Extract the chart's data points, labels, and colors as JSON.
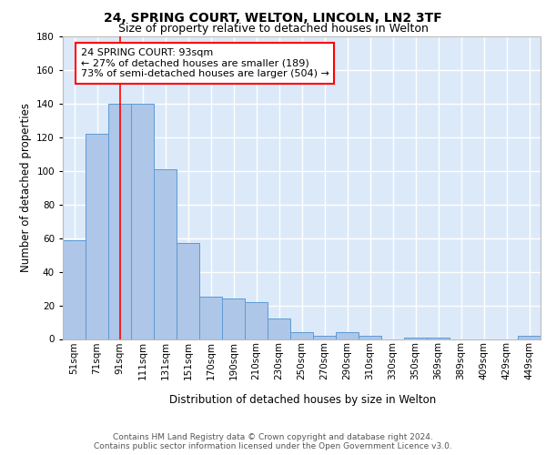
{
  "title1": "24, SPRING COURT, WELTON, LINCOLN, LN2 3TF",
  "title2": "Size of property relative to detached houses in Welton",
  "xlabel": "Distribution of detached houses by size in Welton",
  "ylabel": "Number of detached properties",
  "categories": [
    "51sqm",
    "71sqm",
    "91sqm",
    "111sqm",
    "131sqm",
    "151sqm",
    "170sqm",
    "190sqm",
    "210sqm",
    "230sqm",
    "250sqm",
    "270sqm",
    "290sqm",
    "310sqm",
    "330sqm",
    "350sqm",
    "369sqm",
    "389sqm",
    "409sqm",
    "429sqm",
    "449sqm"
  ],
  "values": [
    59,
    122,
    140,
    140,
    101,
    57,
    25,
    24,
    22,
    12,
    4,
    2,
    4,
    2,
    0,
    1,
    1,
    0,
    0,
    0,
    2
  ],
  "bar_color": "#aec6e8",
  "bar_edge_color": "#5b9bd5",
  "red_line_x": 2,
  "annotation_text": "24 SPRING COURT: 93sqm\n← 27% of detached houses are smaller (189)\n73% of semi-detached houses are larger (504) →",
  "annotation_box_color": "white",
  "annotation_box_edge_color": "red",
  "ylim": [
    0,
    180
  ],
  "yticks": [
    0,
    20,
    40,
    60,
    80,
    100,
    120,
    140,
    160,
    180
  ],
  "footer": "Contains HM Land Registry data © Crown copyright and database right 2024.\nContains public sector information licensed under the Open Government Licence v3.0.",
  "bg_color": "#dce9f8",
  "grid_color": "white",
  "title1_fontsize": 10,
  "title2_fontsize": 9,
  "xlabel_fontsize": 8.5,
  "ylabel_fontsize": 8.5,
  "tick_fontsize": 7.5,
  "annotation_fontsize": 8,
  "footer_fontsize": 6.5
}
